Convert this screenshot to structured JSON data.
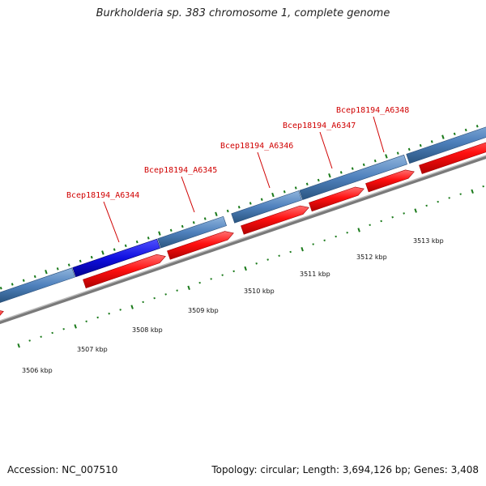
{
  "header": {
    "title": "Burkholderia sp. 383 chromosome 1, complete genome"
  },
  "footer": {
    "accession": "Accession: NC_007510",
    "summary": "Topology: circular; Length: 3,694,126 bp; Genes: 3,408"
  },
  "colors": {
    "cds_selected": "#1010e0",
    "cds": "#4f81bd",
    "gene": "#ff1010",
    "backbone": "#808080",
    "tick": "#1a7a1a",
    "label": "#d00000"
  },
  "gene_labels": [
    "Bcep18194_A6344",
    "Bcep18194_A6345",
    "Bcep18194_A6346",
    "Bcep18194_A6347",
    "Bcep18194_A6348"
  ],
  "kbp_labels": [
    "3506 kbp",
    "3507 kbp",
    "3508 kbp",
    "3509 kbp",
    "3510 kbp",
    "3511 kbp",
    "3512 kbp",
    "3513 kbp"
  ]
}
